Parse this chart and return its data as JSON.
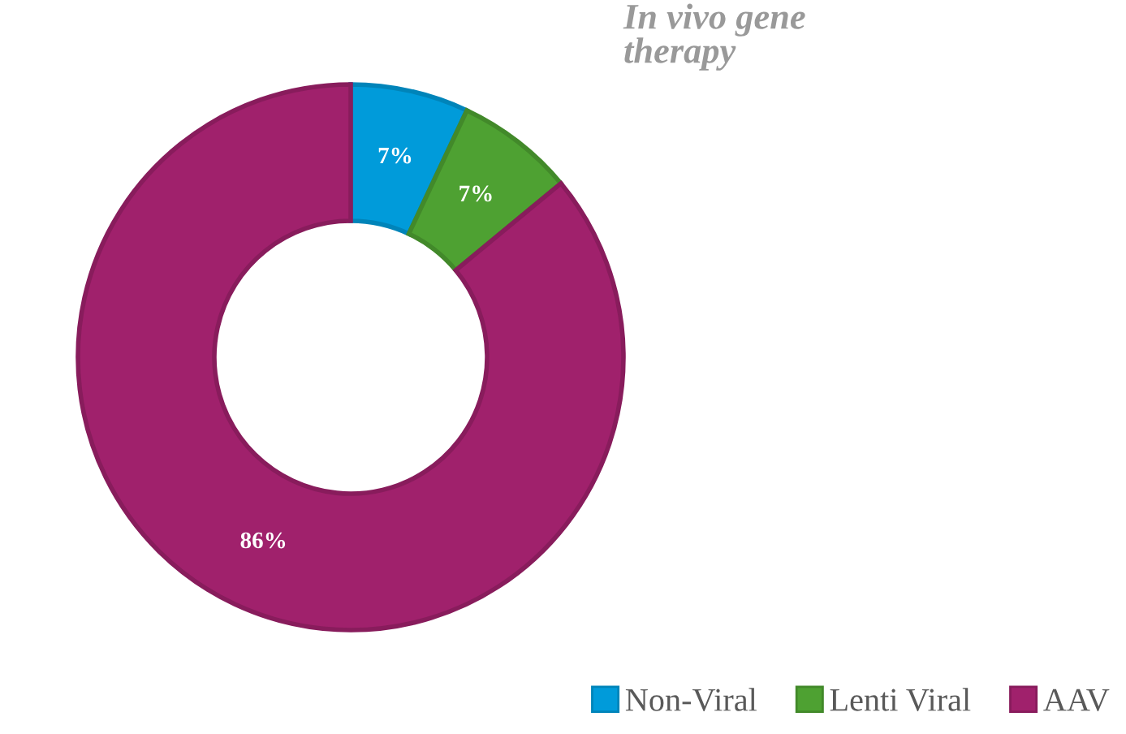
{
  "chart_data": {
    "type": "donut",
    "title": "In vivo gene therapy",
    "categories": [
      "Non-Viral",
      "Lenti Viral",
      "AAV"
    ],
    "values": [
      7,
      7,
      86
    ],
    "colors": [
      "#009bda",
      "#4ea132",
      "#a0216c"
    ],
    "value_labels": [
      "7%",
      "7%",
      "86%"
    ],
    "legend": "bottom right"
  }
}
